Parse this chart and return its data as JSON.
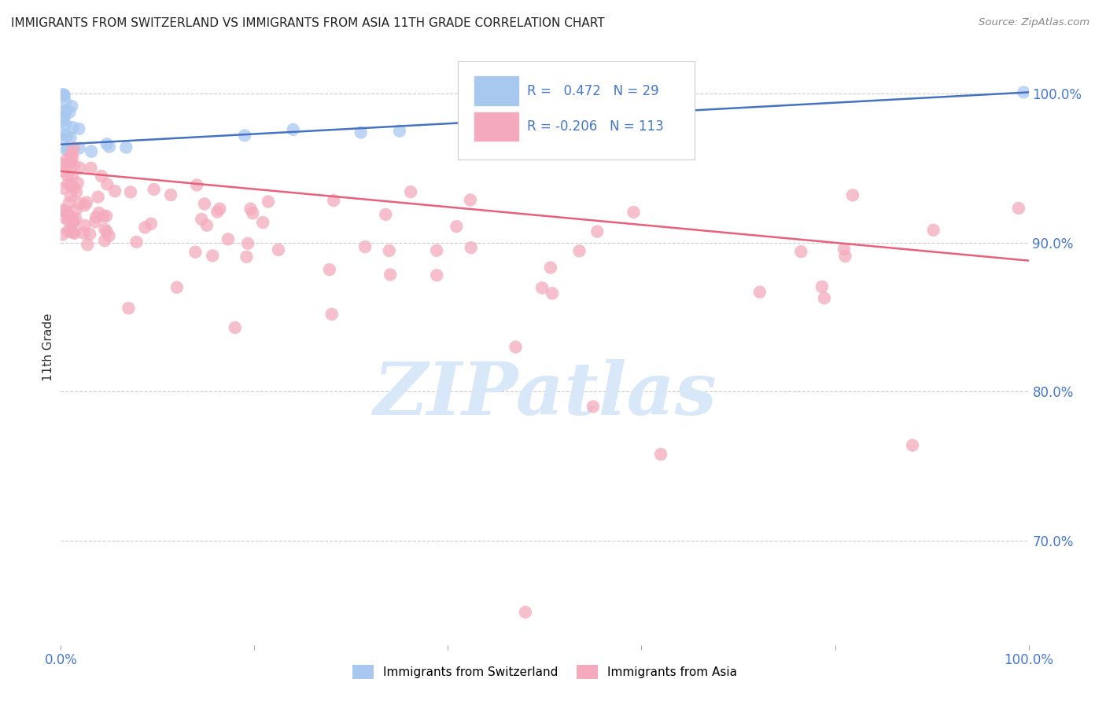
{
  "title": "IMMIGRANTS FROM SWITZERLAND VS IMMIGRANTS FROM ASIA 11TH GRADE CORRELATION CHART",
  "source": "Source: ZipAtlas.com",
  "ylabel": "11th Grade",
  "legend_blue_r": "0.472",
  "legend_blue_n": "29",
  "legend_pink_r": "-0.206",
  "legend_pink_n": "113",
  "blue_color": "#A8C8F0",
  "blue_line_color": "#4472C4",
  "pink_color": "#F4AABC",
  "pink_line_color": "#E8607A",
  "background_color": "#FFFFFF",
  "grid_color": "#CCCCCC",
  "title_color": "#222222",
  "axis_label_color": "#4477CC",
  "watermark_color": "#D8E8F8",
  "xlim": [
    0.0,
    1.0
  ],
  "ylim": [
    0.63,
    1.03
  ],
  "yticks": [
    0.7,
    0.8,
    0.9,
    1.0
  ],
  "ytick_labels": [
    "70.0%",
    "80.0%",
    "90.0%",
    "100.0%"
  ],
  "blue_line_x0": 0.0,
  "blue_line_y0": 0.966,
  "blue_line_x1": 1.0,
  "blue_line_y1": 1.001,
  "pink_line_x0": 0.0,
  "pink_line_y0": 0.948,
  "pink_line_x1": 1.0,
  "pink_line_y1": 0.888
}
